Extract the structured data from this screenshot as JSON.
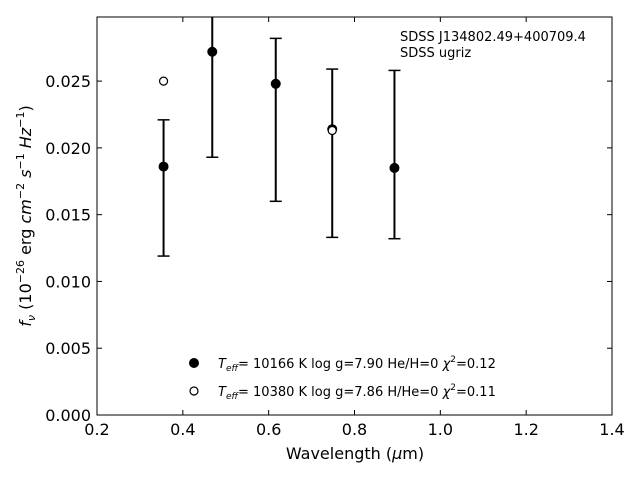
{
  "chart_data": {
    "type": "scatter",
    "xlabel_text": "Wavelength (",
    "xlabel_mu": "μ",
    "xlabel_unit": "m)",
    "ylabel_f": "f",
    "ylabel_nu": "ν",
    "ylabel_open": " (10",
    "ylabel_exp1": "−26",
    "ylabel_erg": " erg ",
    "ylabel_cm": "cm",
    "ylabel_exp2": "−2",
    "ylabel_s": " s",
    "ylabel_exp3": "−1",
    "ylabel_hz": " Hz",
    "ylabel_exp4": "−1",
    "ylabel_close": ")",
    "xlim": [
      0.2,
      1.4
    ],
    "ylim": [
      0.0,
      0.0298
    ],
    "x_ticks": [
      0.2,
      0.4,
      0.6,
      0.8,
      1.0,
      1.2,
      1.4
    ],
    "x_tick_labels": [
      "0.2",
      "0.4",
      "0.6",
      "0.8",
      "1.0",
      "1.2",
      "1.4"
    ],
    "y_ticks": [
      0.0,
      0.005,
      0.01,
      0.015,
      0.02,
      0.025
    ],
    "y_tick_labels": [
      "0.000",
      "0.005",
      "0.010",
      "0.015",
      "0.020",
      "0.025"
    ],
    "grid": false,
    "legend_position": "bottom-center",
    "annotation_lines": [
      "SDSS J134802.49+400709.4",
      "SDSS ugriz"
    ],
    "observed": {
      "x": [
        0.3551,
        0.4686,
        0.6165,
        0.7481,
        0.8931
      ],
      "y": [
        0.017,
        0.0254,
        0.0221,
        0.0196,
        0.0195
      ],
      "yerr": [
        0.0051,
        0.0061,
        0.0061,
        0.0063,
        0.0063
      ]
    },
    "series": [
      {
        "marker": "filled-circle",
        "color": "#000000",
        "x": [
          0.3551,
          0.4686,
          0.6165,
          0.7481,
          0.8931
        ],
        "y": [
          0.0186,
          0.0272,
          0.0248,
          0.0214,
          0.0185
        ],
        "label_T": "T",
        "label_eff": "eff",
        "label_mid": "= 10166 K  log g=7.90  He/H=0  ",
        "label_chi": "χ",
        "label_sup": "2",
        "label_end": "=0.12"
      },
      {
        "marker": "open-circle",
        "color": "#000000",
        "x": [
          0.3551,
          0.7481
        ],
        "y": [
          0.025,
          0.0213
        ],
        "label_T": "T",
        "label_eff": "eff",
        "label_mid": "= 10380 K  log g=7.86  H/He=0  ",
        "label_chi": "χ",
        "label_sup": "2",
        "label_end": "=0.11"
      }
    ]
  }
}
